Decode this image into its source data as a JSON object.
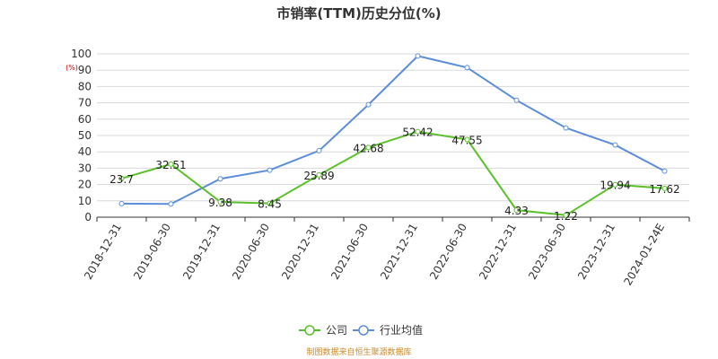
{
  "chart_data": {
    "type": "line",
    "title": "市销率(TTM)历史分位(%)",
    "ylabel": "(%)",
    "ylim": [
      0,
      100
    ],
    "yticks": [
      0,
      10,
      20,
      30,
      40,
      50,
      60,
      70,
      80,
      90,
      100
    ],
    "grid": true,
    "legend_position": "bottom",
    "categories": [
      "2018-12-31",
      "2019-06-30",
      "2019-12-31",
      "2020-06-30",
      "2020-12-31",
      "2021-06-30",
      "2021-12-31",
      "2022-06-30",
      "2022-12-31",
      "2023-06-30",
      "2023-12-31",
      "2024-01-24E"
    ],
    "series": [
      {
        "name": "公司",
        "color": "#5ac12a",
        "values": [
          23.7,
          32.51,
          9.38,
          8.45,
          25.89,
          42.68,
          52.42,
          47.55,
          4.33,
          1.22,
          19.94,
          17.62
        ],
        "labels": [
          "23.7",
          "32.51",
          "9.38",
          "8.45",
          "25.89",
          "42.68",
          "52.42",
          "47.55",
          "4.33",
          "1.22",
          "19.94",
          "17.62"
        ]
      },
      {
        "name": "行业均值",
        "color": "#5b8ddb",
        "values": [
          8.3,
          8.1,
          23.5,
          28.8,
          40.7,
          68.9,
          98.7,
          91.6,
          71.6,
          54.7,
          44.2,
          28.2
        ]
      }
    ],
    "source": "制图数据来自恒生聚源数据库"
  }
}
